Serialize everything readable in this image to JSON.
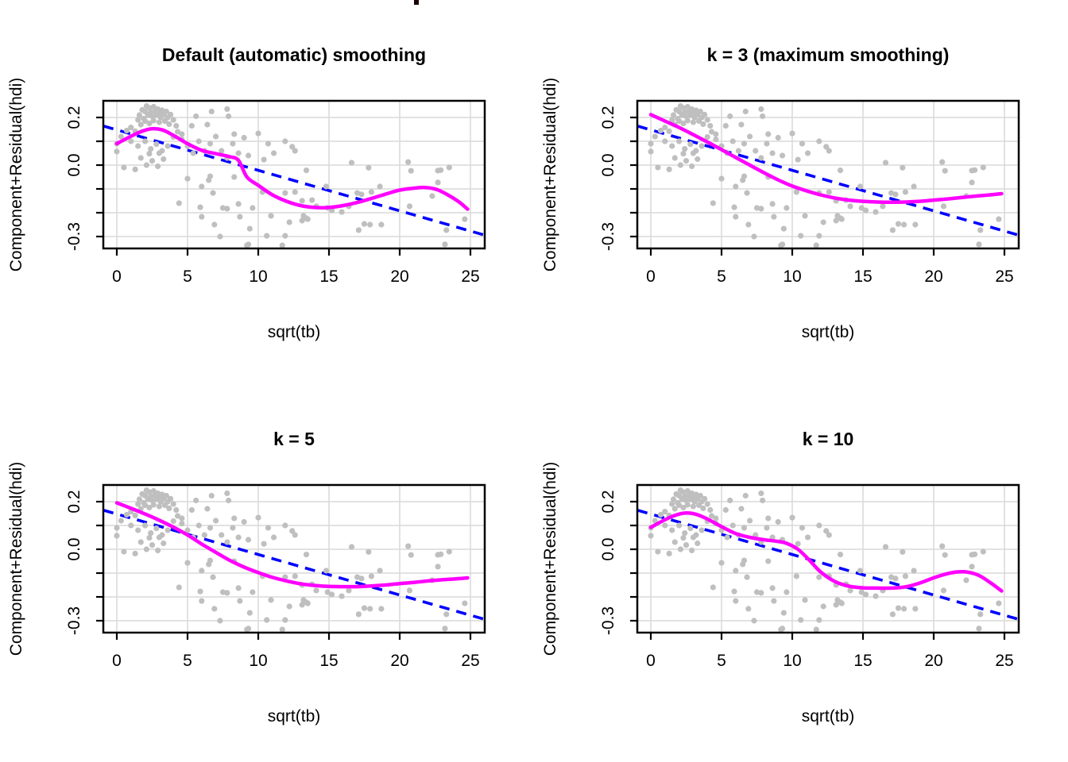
{
  "page": {
    "background": "#ffffff",
    "clipped_title_fragment_color": "#1a0000"
  },
  "chart_data": {
    "type": "scatter",
    "layout": "2x2 panel grid, identical data, different smoothers",
    "xlabel": "sqrt(tb)",
    "ylabel": "Component+Residual(hdi)",
    "x_ticks": [
      0,
      5,
      10,
      15,
      20,
      25
    ],
    "y_ticks": [
      0.2,
      0.1,
      0.0,
      -0.1,
      -0.2,
      -0.3
    ],
    "y_labeled_ticks": [
      {
        "v": 0.2,
        "label": "0.2"
      },
      {
        "v": 0.0,
        "label": "0.0"
      },
      {
        "v": -0.3,
        "label": "-0.3"
      }
    ],
    "xlim": [
      -0.95,
      26.0
    ],
    "ylim": [
      -0.35,
      0.27
    ],
    "grid": true,
    "colors": {
      "points": "#bfbfbf",
      "smooth": "#ff00ff",
      "linear": "#0000ff",
      "grid": "#d9d9d9",
      "box": "#000000"
    },
    "linear_fit": {
      "intercept": 0.148,
      "slope": -0.017
    },
    "panels": [
      {
        "title": "Default (automatic) smoothing",
        "smooth": [
          [
            0,
            0.09
          ],
          [
            0.8,
            0.115
          ],
          [
            1.6,
            0.138
          ],
          [
            2.4,
            0.152
          ],
          [
            3.2,
            0.148
          ],
          [
            4,
            0.125
          ],
          [
            5,
            0.09
          ],
          [
            6,
            0.062
          ],
          [
            7,
            0.048
          ],
          [
            8,
            0.035
          ],
          [
            8.6,
            0.02
          ],
          [
            9.2,
            -0.05
          ],
          [
            10,
            -0.085
          ],
          [
            11,
            -0.125
          ],
          [
            12,
            -0.152
          ],
          [
            13,
            -0.17
          ],
          [
            14,
            -0.178
          ],
          [
            15,
            -0.178
          ],
          [
            16,
            -0.17
          ],
          [
            17,
            -0.157
          ],
          [
            18,
            -0.14
          ],
          [
            19,
            -0.122
          ],
          [
            20,
            -0.105
          ],
          [
            21,
            -0.097
          ],
          [
            21.8,
            -0.094
          ],
          [
            22.6,
            -0.102
          ],
          [
            23.4,
            -0.125
          ],
          [
            24.2,
            -0.155
          ],
          [
            24.8,
            -0.185
          ]
        ]
      },
      {
        "title": "k = 3 (maximum smoothing)",
        "smooth": [
          [
            0,
            0.212
          ],
          [
            1,
            0.185
          ],
          [
            2,
            0.158
          ],
          [
            3,
            0.128
          ],
          [
            4,
            0.097
          ],
          [
            5,
            0.065
          ],
          [
            6,
            0.032
          ],
          [
            7,
            0.0
          ],
          [
            8,
            -0.032
          ],
          [
            9,
            -0.062
          ],
          [
            10,
            -0.088
          ],
          [
            11,
            -0.108
          ],
          [
            12,
            -0.125
          ],
          [
            13,
            -0.138
          ],
          [
            14,
            -0.147
          ],
          [
            15,
            -0.152
          ],
          [
            16,
            -0.155
          ],
          [
            17,
            -0.156
          ],
          [
            18,
            -0.155
          ],
          [
            19,
            -0.152
          ],
          [
            20,
            -0.147
          ],
          [
            21,
            -0.142
          ],
          [
            22,
            -0.136
          ],
          [
            23,
            -0.13
          ],
          [
            24,
            -0.125
          ],
          [
            24.8,
            -0.12
          ]
        ]
      },
      {
        "title": "k = 5",
        "smooth": [
          [
            0,
            0.195
          ],
          [
            1,
            0.172
          ],
          [
            2,
            0.148
          ],
          [
            3,
            0.122
          ],
          [
            4,
            0.093
          ],
          [
            5,
            0.06
          ],
          [
            6,
            0.022
          ],
          [
            7,
            -0.013
          ],
          [
            8,
            -0.047
          ],
          [
            9,
            -0.075
          ],
          [
            10,
            -0.098
          ],
          [
            11,
            -0.118
          ],
          [
            12,
            -0.133
          ],
          [
            13,
            -0.145
          ],
          [
            14,
            -0.152
          ],
          [
            15,
            -0.156
          ],
          [
            16,
            -0.157
          ],
          [
            17,
            -0.157
          ],
          [
            18,
            -0.154
          ],
          [
            19,
            -0.15
          ],
          [
            20,
            -0.144
          ],
          [
            21,
            -0.139
          ],
          [
            22,
            -0.133
          ],
          [
            23,
            -0.128
          ],
          [
            24,
            -0.124
          ],
          [
            24.8,
            -0.12
          ]
        ]
      },
      {
        "title": "k = 10",
        "smooth": [
          [
            0,
            0.092
          ],
          [
            0.8,
            0.118
          ],
          [
            1.6,
            0.14
          ],
          [
            2.4,
            0.152
          ],
          [
            3.2,
            0.147
          ],
          [
            4,
            0.127
          ],
          [
            5,
            0.095
          ],
          [
            6,
            0.066
          ],
          [
            7,
            0.05
          ],
          [
            8,
            0.04
          ],
          [
            9,
            0.033
          ],
          [
            9.6,
            0.025
          ],
          [
            10.4,
            0.0
          ],
          [
            11.2,
            -0.045
          ],
          [
            12,
            -0.095
          ],
          [
            13,
            -0.135
          ],
          [
            14,
            -0.155
          ],
          [
            15,
            -0.162
          ],
          [
            16,
            -0.163
          ],
          [
            17,
            -0.163
          ],
          [
            18,
            -0.158
          ],
          [
            19,
            -0.142
          ],
          [
            20,
            -0.12
          ],
          [
            21,
            -0.102
          ],
          [
            21.7,
            -0.095
          ],
          [
            22.4,
            -0.096
          ],
          [
            23.2,
            -0.11
          ],
          [
            24,
            -0.14
          ],
          [
            24.8,
            -0.175
          ]
        ]
      }
    ],
    "scatter": [
      [
        1.6,
        0.21
      ],
      [
        1.8,
        0.232
      ],
      [
        1.9,
        0.195
      ],
      [
        2.0,
        0.225
      ],
      [
        2.1,
        0.248
      ],
      [
        2.2,
        0.21
      ],
      [
        2.3,
        0.24
      ],
      [
        2.4,
        0.222
      ],
      [
        2.5,
        0.205
      ],
      [
        2.6,
        0.245
      ],
      [
        2.7,
        0.227
      ],
      [
        2.8,
        0.21
      ],
      [
        2.9,
        0.235
      ],
      [
        3.0,
        0.22
      ],
      [
        3.1,
        0.2
      ],
      [
        3.2,
        0.23
      ],
      [
        3.3,
        0.213
      ],
      [
        3.5,
        0.225
      ],
      [
        3.6,
        0.2
      ],
      [
        3.8,
        0.212
      ],
      [
        2.0,
        0.185
      ],
      [
        2.3,
        0.175
      ],
      [
        2.6,
        0.187
      ],
      [
        3.0,
        0.18
      ],
      [
        3.4,
        0.185
      ],
      [
        3.7,
        0.172
      ],
      [
        4.0,
        0.19
      ],
      [
        4.2,
        0.165
      ],
      [
        1.5,
        0.19
      ],
      [
        1.7,
        0.17
      ],
      [
        0.0,
        0.09
      ],
      [
        0.3,
        0.12
      ],
      [
        0.7,
        0.145
      ],
      [
        1.0,
        0.158
      ],
      [
        1.3,
        0.142
      ],
      [
        1.0,
        0.1
      ],
      [
        1.5,
        0.08
      ],
      [
        2.0,
        0.1
      ],
      [
        2.4,
        0.068
      ],
      [
        2.8,
        0.088
      ],
      [
        3.2,
        0.06
      ],
      [
        3.6,
        0.08
      ],
      [
        4.0,
        0.118
      ],
      [
        4.3,
        0.14
      ],
      [
        4.6,
        0.108
      ],
      [
        0.5,
        -0.01
      ],
      [
        1.3,
        -0.018
      ],
      [
        1.7,
        0.03
      ],
      [
        2.1,
        0.0
      ],
      [
        2.5,
        0.018
      ],
      [
        2.9,
        -0.005
      ],
      [
        3.3,
        0.025
      ],
      [
        2.3,
        0.048
      ],
      [
        3.0,
        0.05
      ],
      [
        0.0,
        0.057
      ],
      [
        5.6,
        0.205
      ],
      [
        5.3,
        0.165
      ],
      [
        6.4,
        0.17
      ],
      [
        6.7,
        0.225
      ],
      [
        7.8,
        0.235
      ],
      [
        7.9,
        0.205
      ],
      [
        4.6,
        0.13
      ],
      [
        5.0,
        0.08
      ],
      [
        5.4,
        0.05
      ],
      [
        5.8,
        0.1
      ],
      [
        6.2,
        0.06
      ],
      [
        6.6,
        0.09
      ],
      [
        7.0,
        0.12
      ],
      [
        7.4,
        0.06
      ],
      [
        7.8,
        0.03
      ],
      [
        8.2,
        0.09
      ],
      [
        8.6,
        0.05
      ],
      [
        9.0,
        0.115
      ],
      [
        8.3,
        0.13
      ],
      [
        9.3,
        0.04
      ],
      [
        10.0,
        0.133
      ],
      [
        10.7,
        0.09
      ],
      [
        11.1,
        0.05
      ],
      [
        11.9,
        0.1
      ],
      [
        12.4,
        0.077
      ],
      [
        10.4,
        0.023
      ],
      [
        12.6,
        0.06
      ],
      [
        5.0,
        -0.057
      ],
      [
        6.0,
        -0.09
      ],
      [
        6.5,
        -0.063
      ],
      [
        6.8,
        -0.117
      ],
      [
        4.4,
        -0.16
      ],
      [
        5.9,
        -0.177
      ],
      [
        6.0,
        -0.217
      ],
      [
        7.5,
        -0.18
      ],
      [
        7.8,
        -0.183
      ],
      [
        6.9,
        -0.25
      ],
      [
        7.3,
        -0.3
      ],
      [
        8.6,
        -0.163
      ],
      [
        8.7,
        -0.217
      ],
      [
        9.6,
        -0.18
      ],
      [
        9.4,
        -0.267
      ],
      [
        9.3,
        -0.333
      ],
      [
        10.3,
        -0.113
      ],
      [
        10.9,
        -0.213
      ],
      [
        10.6,
        -0.297
      ],
      [
        11.9,
        -0.297
      ],
      [
        11.9,
        -0.117
      ],
      [
        12.2,
        -0.24
      ],
      [
        6.6,
        -0.047
      ],
      [
        8.3,
        -0.05
      ],
      [
        9.2,
        -0.337
      ],
      [
        11.7,
        -0.337
      ],
      [
        13.4,
        -0.022
      ],
      [
        16.6,
        0.01
      ],
      [
        17.8,
        -0.011
      ],
      [
        20.6,
        0.013
      ],
      [
        20.8,
        -0.024
      ],
      [
        22.7,
        -0.023
      ],
      [
        22.9,
        -0.021
      ],
      [
        23.5,
        -0.01
      ],
      [
        12.6,
        -0.113
      ],
      [
        13.1,
        -0.15
      ],
      [
        13.8,
        -0.147
      ],
      [
        14.1,
        -0.173
      ],
      [
        14.8,
        -0.09
      ],
      [
        14.9,
        -0.18
      ],
      [
        15.2,
        -0.19
      ],
      [
        15.9,
        -0.197
      ],
      [
        16.4,
        -0.173
      ],
      [
        17.0,
        -0.117
      ],
      [
        17.3,
        -0.123
      ],
      [
        18.0,
        -0.113
      ],
      [
        13.2,
        -0.213
      ],
      [
        13.4,
        -0.223
      ],
      [
        13.1,
        -0.233
      ],
      [
        13.5,
        -0.227
      ],
      [
        17.1,
        -0.273
      ],
      [
        17.5,
        -0.247
      ],
      [
        17.9,
        -0.25
      ],
      [
        18.7,
        -0.25
      ],
      [
        18.6,
        -0.09
      ],
      [
        20.7,
        -0.173
      ],
      [
        22.7,
        -0.073
      ],
      [
        22.3,
        -0.13
      ],
      [
        23.3,
        -0.273
      ],
      [
        23.2,
        -0.333
      ],
      [
        24.6,
        -0.227
      ]
    ]
  }
}
